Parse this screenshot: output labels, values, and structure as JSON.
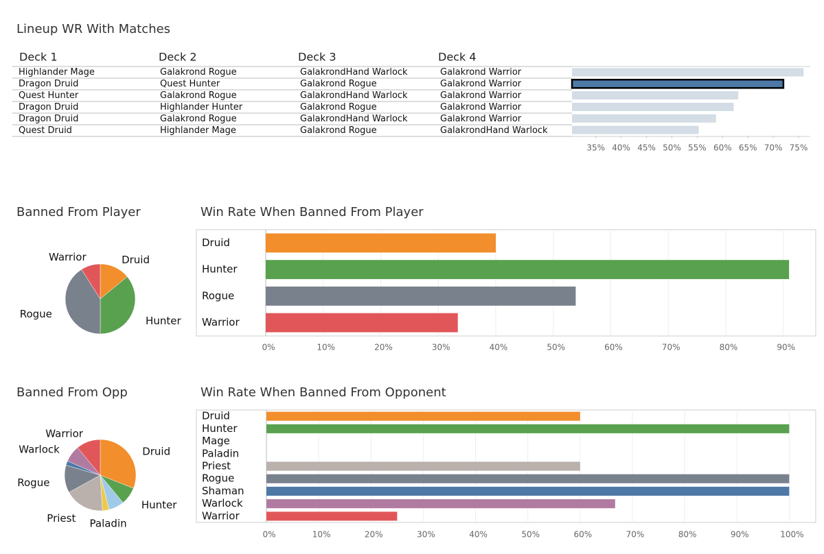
{
  "chart_data": [
    {
      "type": "bar",
      "orientation": "horizontal",
      "title": "Lineup WR With Matches",
      "columns": [
        "Deck 1",
        "Deck 2",
        "Deck 3",
        "Deck 4"
      ],
      "rows": [
        [
          "Highlander Mage",
          "Galakrond Rogue",
          "GalakrondHand Warlock",
          "Galakrond Warrior"
        ],
        [
          "Dragon Druid",
          "Quest Hunter",
          "Galakrond Rogue",
          "Galakrond Warrior"
        ],
        [
          "Quest Hunter",
          "Galakrond Rogue",
          "GalakrondHand Warlock",
          "Galakrond Warrior"
        ],
        [
          "Dragon Druid",
          "Highlander Hunter",
          "Galakrond Rogue",
          "Galakrond Warrior"
        ],
        [
          "Dragon Druid",
          "Galakrond Rogue",
          "GalakrondHand Warlock",
          "Galakrond Warrior"
        ],
        [
          "Quest Druid",
          "Highlander Mage",
          "Galakrond Rogue",
          "GalakrondHand Warlock"
        ]
      ],
      "values": [
        76,
        72,
        63.1,
        62.2,
        58.7,
        55.3
      ],
      "colors": [
        "#d4dde5",
        "#4e79a7",
        "#d4dde5",
        "#d4dde5",
        "#d4dde5",
        "#d4dde5"
      ],
      "highlight": [
        false,
        true,
        false,
        false,
        false,
        false
      ],
      "xlim": [
        30.3,
        77.3
      ],
      "xticks": [
        {
          "value": 35,
          "label": "35%"
        },
        {
          "value": 40,
          "label": "40%"
        },
        {
          "value": 45,
          "label": "45%"
        },
        {
          "value": 50,
          "label": "50%"
        },
        {
          "value": 55,
          "label": "55%"
        },
        {
          "value": 60,
          "label": "60%"
        },
        {
          "value": 65,
          "label": "65%"
        },
        {
          "value": 70,
          "label": "70%"
        },
        {
          "value": 75,
          "label": "75%"
        }
      ]
    },
    {
      "type": "pie",
      "title": "Banned From Player",
      "categories": [
        "Druid",
        "Hunter",
        "Rogue",
        "Warrior"
      ],
      "values": [
        14,
        36,
        41,
        9
      ],
      "colors": [
        "#f28e2b",
        "#59a14f",
        "#79818c",
        "#e15759"
      ]
    },
    {
      "type": "bar",
      "orientation": "horizontal",
      "title": "Win Rate When Banned From Player",
      "categories": [
        "Druid",
        "Hunter",
        "Rogue",
        "Warrior"
      ],
      "values": [
        40,
        91,
        53.9,
        33.4
      ],
      "colors": [
        "#f28e2b",
        "#59a14f",
        "#79818c",
        "#e15759"
      ],
      "xlim": [
        0,
        92.3
      ],
      "grid": true,
      "xticks": [
        {
          "value": 0,
          "label": "0%"
        },
        {
          "value": 10,
          "label": "10%"
        },
        {
          "value": 20,
          "label": "20%"
        },
        {
          "value": 30,
          "label": "30%"
        },
        {
          "value": 40,
          "label": "40%"
        },
        {
          "value": 50,
          "label": "50%"
        },
        {
          "value": 60,
          "label": "60%"
        },
        {
          "value": 70,
          "label": "70%"
        },
        {
          "value": 80,
          "label": "80%"
        },
        {
          "value": 90,
          "label": "90%"
        }
      ]
    },
    {
      "type": "pie",
      "title": "Banned From Opp",
      "categories": [
        "Druid",
        "Hunter",
        null,
        "Paladin",
        "Priest",
        "Rogue",
        null,
        "Warlock",
        "Warrior"
      ],
      "values": [
        31,
        8,
        7,
        3,
        18,
        12.5,
        2,
        7.5,
        11
      ],
      "colors": [
        "#f28e2b",
        "#59a14f",
        "#a0cbe8",
        "#edc948",
        "#bab0ac",
        "#79818c",
        "#4e79a7",
        "#b07aa1",
        "#e15759"
      ]
    },
    {
      "type": "bar",
      "orientation": "horizontal",
      "title": "Win Rate When Banned From Opponent",
      "categories": [
        "Druid",
        "Hunter",
        "Mage",
        "Paladin",
        "Priest",
        "Rogue",
        "Shaman",
        "Warlock",
        "Warrior"
      ],
      "values": [
        60,
        100,
        null,
        null,
        60,
        100,
        100,
        66.7,
        25
      ],
      "colors": [
        "#f28e2b",
        "#59a14f",
        "#a0cbe8",
        "#edc948",
        "#bab0ac",
        "#79818c",
        "#4e79a7",
        "#b07aa1",
        "#e15759"
      ],
      "xlim": [
        0,
        103.5
      ],
      "grid": true,
      "xticks": [
        {
          "value": 0,
          "label": "0%"
        },
        {
          "value": 10,
          "label": "10%"
        },
        {
          "value": 20,
          "label": "20%"
        },
        {
          "value": 30,
          "label": "30%"
        },
        {
          "value": 40,
          "label": "40%"
        },
        {
          "value": 50,
          "label": "50%"
        },
        {
          "value": 60,
          "label": "60%"
        },
        {
          "value": 70,
          "label": "70%"
        },
        {
          "value": 80,
          "label": "80%"
        },
        {
          "value": 90,
          "label": "90%"
        },
        {
          "value": 100,
          "label": "100%"
        }
      ]
    }
  ]
}
